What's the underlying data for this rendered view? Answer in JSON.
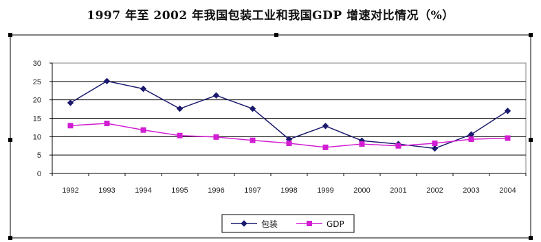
{
  "chart_data": {
    "type": "line",
    "title": "1997 年至 2002 年我国包装工业和我国GDP 增速对比情况（%）",
    "x": [
      "1992",
      "1993",
      "1994",
      "1995",
      "1996",
      "1997",
      "1998",
      "1999",
      "2000",
      "2001",
      "2002",
      "2003",
      "2004"
    ],
    "ylim": [
      0,
      30
    ],
    "yticks": [
      "0",
      "5",
      "10",
      "15",
      "20",
      "25",
      "30"
    ],
    "grid": true,
    "legend_position": "bottom-center",
    "series": [
      {
        "name": "包装",
        "values": [
          19.2,
          25.1,
          23.0,
          17.6,
          21.2,
          17.6,
          9.3,
          12.9,
          8.9,
          8.0,
          6.8,
          10.6,
          17.0
        ],
        "color": "#1b1a6e",
        "marker": "diamond"
      },
      {
        "name": "GDP",
        "values": [
          13.0,
          13.6,
          11.8,
          10.3,
          9.9,
          9.0,
          8.2,
          7.1,
          8.0,
          7.5,
          8.2,
          9.3,
          9.6
        ],
        "color": "#d21ed2",
        "marker": "square"
      }
    ]
  }
}
